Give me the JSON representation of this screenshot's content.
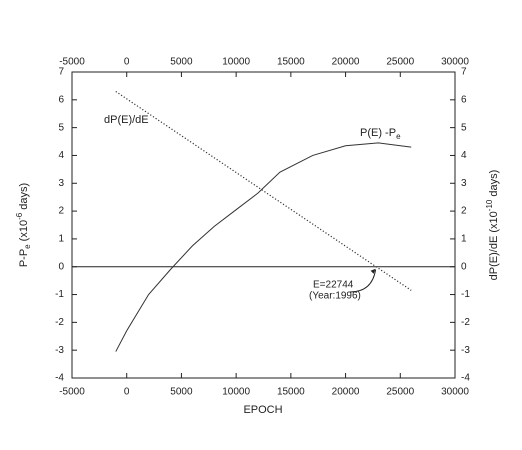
{
  "chart_data": {
    "type": "line",
    "x_label": "EPOCH",
    "y_label_parts": [
      "P-P",
      "e",
      " (x10",
      "-6",
      " days)"
    ],
    "y2_label_parts": [
      "dP(E)/dE (x10",
      "-10",
      " days)"
    ],
    "xlim": [
      -5000,
      30000
    ],
    "xticks": [
      -5000,
      0,
      5000,
      10000,
      15000,
      20000,
      25000,
      30000
    ],
    "ylim": [
      -4,
      7
    ],
    "yticks": [
      -4,
      -3,
      -2,
      -1,
      0,
      1,
      2,
      3,
      4,
      5,
      6,
      7
    ],
    "y2lim": [
      -4,
      7
    ],
    "y2ticks": [
      -4,
      -3,
      -2,
      -1,
      0,
      1,
      2,
      3,
      4,
      5,
      6,
      7
    ],
    "zero_line": 0,
    "series": [
      {
        "color": "#333333",
        "style": "solid",
        "x": [
          -1000,
          0,
          2000,
          4000,
          6000,
          8000,
          10000,
          12000,
          14000,
          17000,
          20000,
          23000,
          26000
        ],
        "values": [
          -3.05,
          -2.3,
          -1.0,
          -0.1,
          0.75,
          1.45,
          2.05,
          2.65,
          3.4,
          4.0,
          4.35,
          4.45,
          4.3
        ]
      },
      {
        "color": "#333333",
        "style": "dotted",
        "axis": "y2",
        "x": [
          -1000,
          26000
        ],
        "values": [
          6.3,
          -0.85
        ]
      }
    ],
    "annotations": {
      "curve_label": "P(E) -P",
      "curve_label_sub": "e",
      "line_label": "dP(E)/dE",
      "epoch_label": "E=22744",
      "epoch_value": 22744,
      "year_label": "(Year:1996)"
    }
  }
}
